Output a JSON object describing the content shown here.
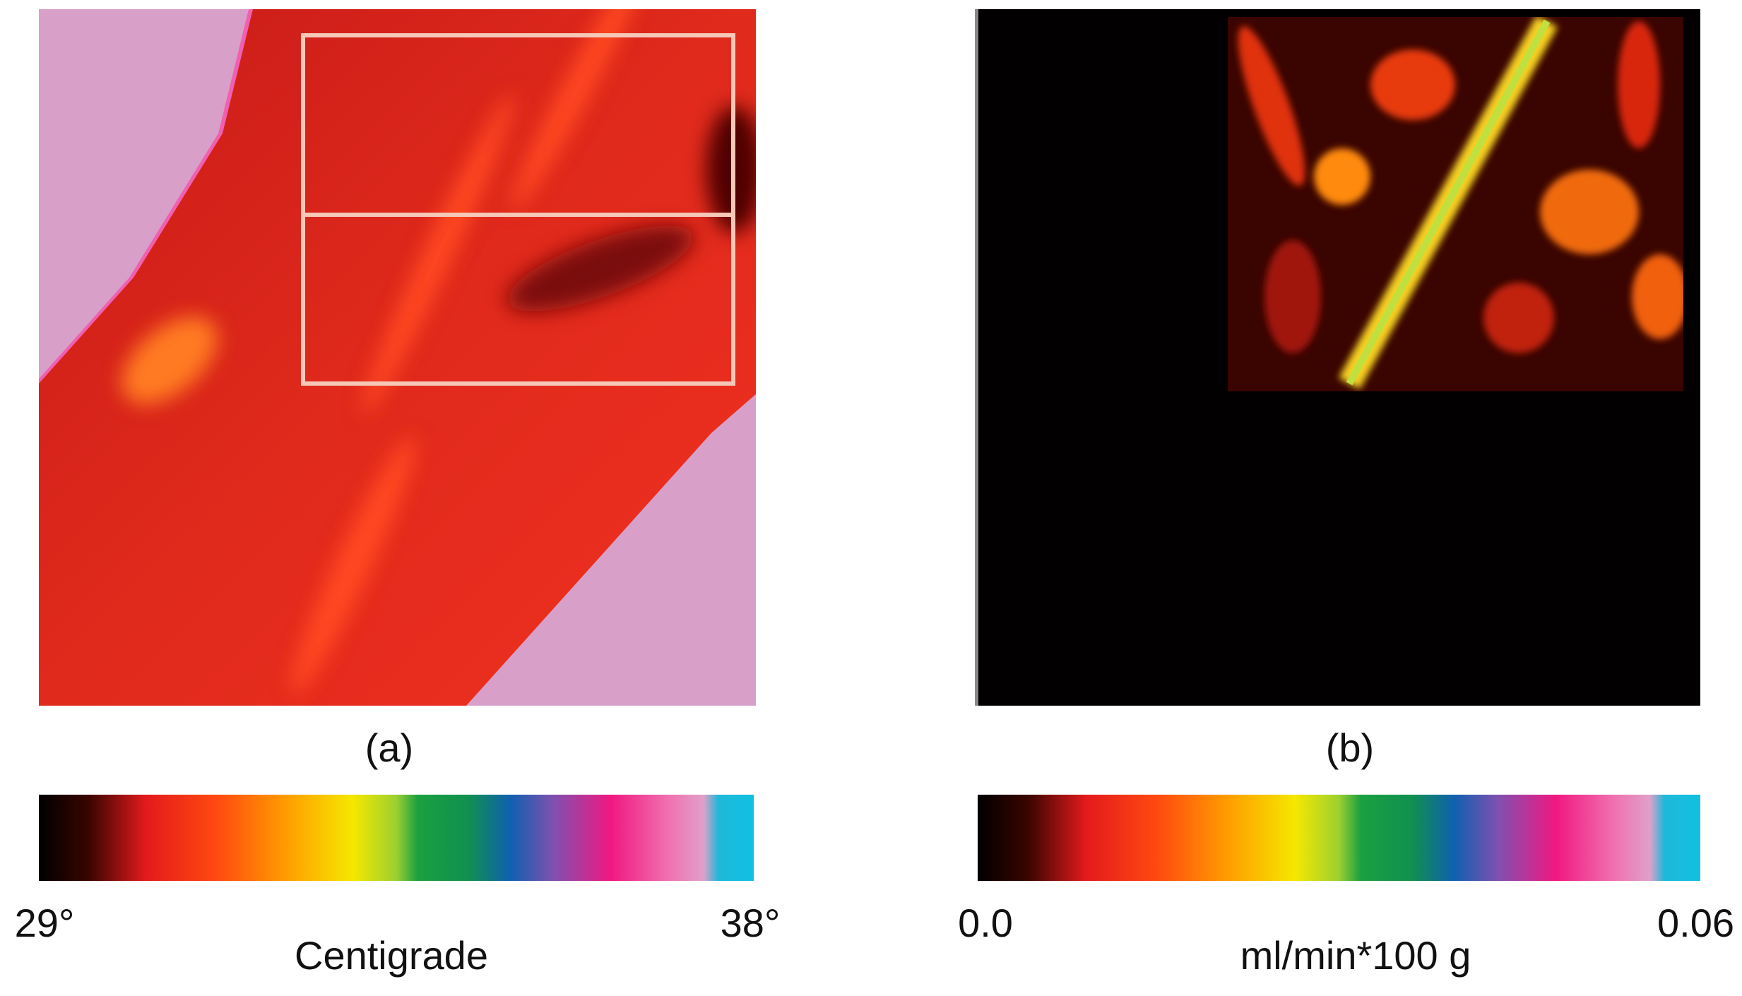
{
  "panels": [
    {
      "label": "(a)",
      "colorbar": {
        "min_label": "29°",
        "max_label": "38°",
        "unit": "Centigrade"
      }
    },
    {
      "label": "(b)",
      "colorbar": {
        "min_label": "0.0",
        "max_label": "0.06",
        "unit": "ml/min*100 g"
      }
    }
  ]
}
